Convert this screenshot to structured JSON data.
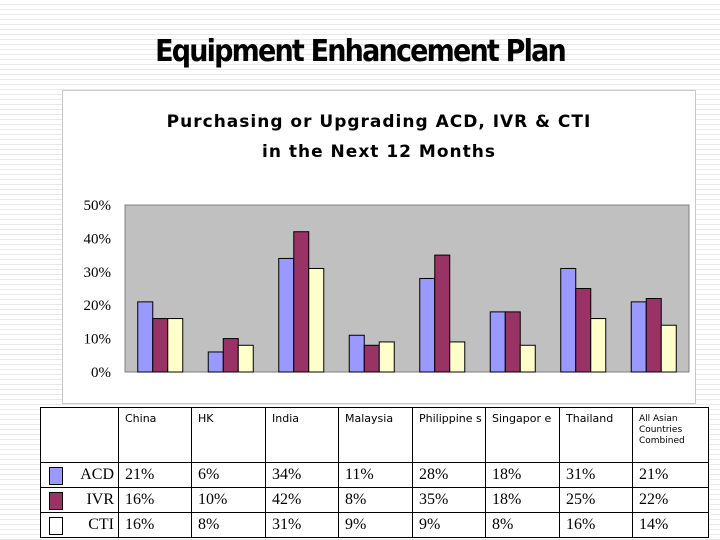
{
  "slide_title": "Equipment Enhancement Plan",
  "chart_data": {
    "type": "bar",
    "title_lines": [
      "Purchasing or Upgrading ACD, IVR & CTI",
      "in the Next 12 Months"
    ],
    "categories": [
      "China",
      "HK",
      "India",
      "Malaysia",
      "Philippines",
      "Singapore",
      "Thailand",
      "All Asian Countries Combined"
    ],
    "series": [
      {
        "name": "ACD",
        "color": "#9999ff",
        "values": [
          21,
          6,
          34,
          11,
          28,
          18,
          31,
          21
        ]
      },
      {
        "name": "IVR",
        "color": "#993366",
        "values": [
          16,
          10,
          42,
          8,
          35,
          18,
          25,
          22
        ]
      },
      {
        "name": "CTI",
        "color": "#ffffcc",
        "values": [
          16,
          8,
          31,
          9,
          9,
          8,
          16,
          14
        ]
      }
    ],
    "ylim": [
      0,
      50
    ],
    "yticks": [
      "0%",
      "10%",
      "20%",
      "30%",
      "40%",
      "50%"
    ],
    "plot_background": "#c0c0c0",
    "gridlines": false
  },
  "table": {
    "headers": [
      "China",
      "HK",
      "India",
      "Malaysia",
      "Philippine s",
      "Singapor e",
      "Thailand",
      "All Asian Countries Combined"
    ],
    "rows": [
      {
        "label": "ACD",
        "swatch_color": "#9999ff",
        "cells": [
          "21%",
          "6%",
          "34%",
          "11%",
          "28%",
          "18%",
          "31%",
          "21%"
        ]
      },
      {
        "label": "IVR",
        "swatch_color": "#993366",
        "cells": [
          "16%",
          "10%",
          "42%",
          "8%",
          "35%",
          "18%",
          "25%",
          "22%"
        ]
      },
      {
        "label": "CTI",
        "swatch_color": "#ffffff",
        "cells": [
          "16%",
          "8%",
          "31%",
          "9%",
          "9%",
          "8%",
          "16%",
          "14%"
        ]
      }
    ]
  }
}
